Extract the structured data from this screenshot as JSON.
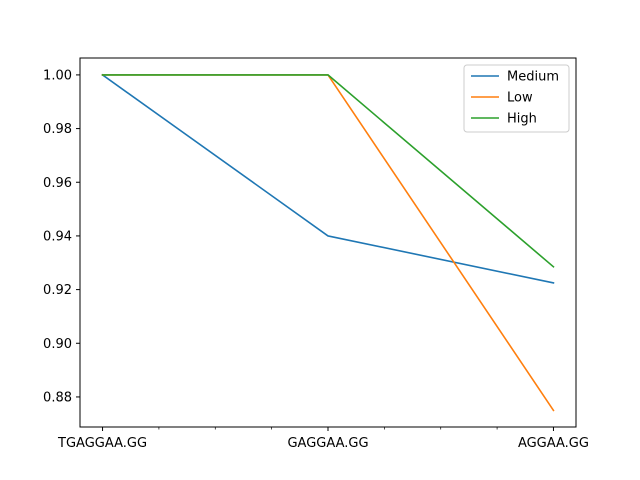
{
  "chart_data": {
    "type": "line",
    "categories": [
      "TGAGGAA.GG",
      "GAGGAA.GG",
      "AGGAA.GG"
    ],
    "series": [
      {
        "name": "Medium",
        "color": "#1f77b4",
        "values": [
          1.0,
          0.94,
          0.9225
        ]
      },
      {
        "name": "Low",
        "color": "#ff7f0e",
        "values": [
          1.0,
          1.0,
          0.875
        ]
      },
      {
        "name": "High",
        "color": "#2ca02c",
        "values": [
          1.0,
          1.0,
          0.9285
        ]
      }
    ],
    "y_ticks": [
      {
        "value": 0.88,
        "label": "0.88"
      },
      {
        "value": 0.9,
        "label": "0.90"
      },
      {
        "value": 0.92,
        "label": "0.92"
      },
      {
        "value": 0.94,
        "label": "0.94"
      },
      {
        "value": 0.96,
        "label": "0.96"
      },
      {
        "value": 0.98,
        "label": "0.98"
      },
      {
        "value": 1.0,
        "label": "1.00"
      }
    ],
    "x_minor_ticks": [
      0.25,
      0.5,
      0.75,
      1.25,
      1.5,
      1.75
    ],
    "ylim": [
      0.8688,
      1.0063
    ],
    "xlim": [
      -0.1,
      2.1
    ],
    "grid": false,
    "legend_position": "top-right"
  }
}
